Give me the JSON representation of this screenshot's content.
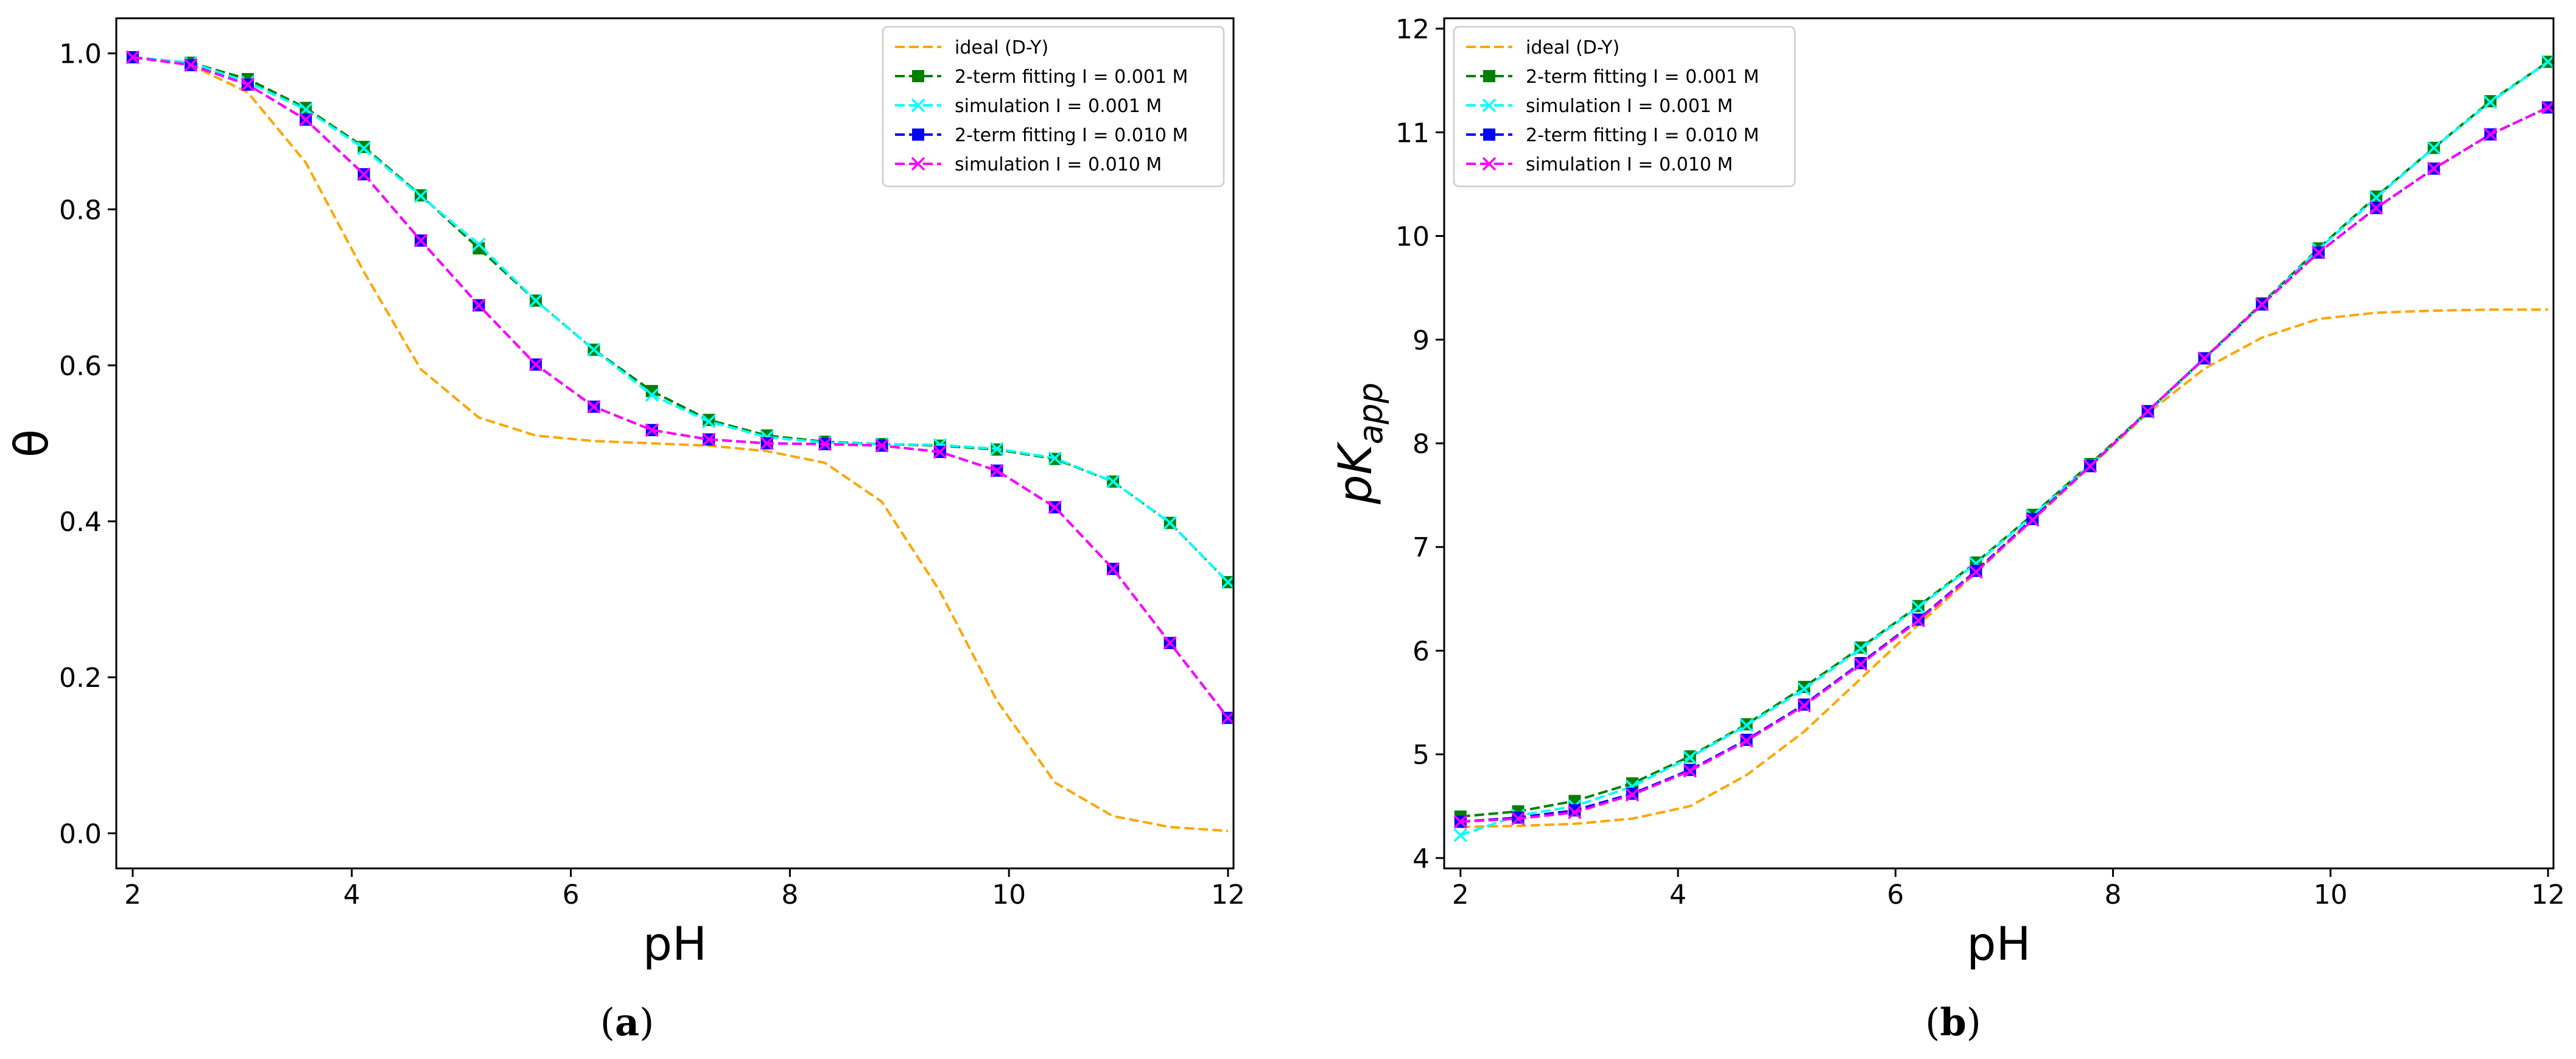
{
  "figure": {
    "panels": [
      {
        "open": "(",
        "letter": "a",
        "close": ")"
      },
      {
        "open": "(",
        "letter": "b",
        "close": ")"
      }
    ]
  },
  "chart_data": [
    {
      "type": "line",
      "panel": "a",
      "title": "",
      "xlabel": "pH",
      "ylabel": "θ",
      "ylabel_main": "θ",
      "ylabel_sub": "",
      "xlim": [
        1.85,
        12.05
      ],
      "ylim": [
        -0.045,
        1.045
      ],
      "xticks": [
        2,
        4,
        6,
        8,
        10,
        12
      ],
      "yticks": [
        0.0,
        0.2,
        0.4,
        0.6,
        0.8,
        1.0
      ],
      "ytick_labels": [
        "0.0",
        "0.2",
        "0.4",
        "0.6",
        "0.8",
        "1.0"
      ],
      "legend_position": "top-right",
      "x": [
        2.0,
        2.53,
        3.05,
        3.58,
        4.11,
        4.63,
        5.16,
        5.68,
        6.21,
        6.74,
        7.26,
        7.79,
        8.32,
        8.84,
        9.37,
        9.89,
        10.42,
        10.95,
        11.47,
        12.0
      ],
      "series": [
        {
          "name": "ideal (D-Y)",
          "color": "#ffa500",
          "marker": "none",
          "values": [
            0.995,
            0.985,
            0.95,
            0.86,
            0.72,
            0.595,
            0.533,
            0.51,
            0.503,
            0.5,
            0.497,
            0.49,
            0.475,
            0.425,
            0.31,
            0.17,
            0.065,
            0.022,
            0.008,
            0.003
          ]
        },
        {
          "name": "2-term fitting I = 0.001 M",
          "color": "#008000",
          "marker": "square",
          "values": [
            0.995,
            0.988,
            0.967,
            0.93,
            0.88,
            0.818,
            0.75,
            0.683,
            0.62,
            0.567,
            0.53,
            0.51,
            0.502,
            0.499,
            0.497,
            0.492,
            0.48,
            0.451,
            0.398,
            0.322
          ]
        },
        {
          "name": "simulation I = 0.001 M",
          "color": "#00ffff",
          "marker": "x",
          "values": [
            0.995,
            0.988,
            0.963,
            0.928,
            0.878,
            0.817,
            0.755,
            0.683,
            0.62,
            0.562,
            0.528,
            0.508,
            0.501,
            0.499,
            0.498,
            0.493,
            0.481,
            0.451,
            0.398,
            0.322
          ]
        },
        {
          "name": "2-term fitting I = 0.010 M",
          "color": "#0000ff",
          "marker": "square",
          "values": [
            0.995,
            0.985,
            0.96,
            0.915,
            0.845,
            0.76,
            0.677,
            0.601,
            0.547,
            0.517,
            0.505,
            0.5,
            0.499,
            0.497,
            0.489,
            0.465,
            0.418,
            0.339,
            0.244,
            0.148
          ]
        },
        {
          "name": "simulation I = 0.010 M",
          "color": "#ff00ff",
          "marker": "x",
          "values": [
            0.995,
            0.985,
            0.96,
            0.915,
            0.845,
            0.76,
            0.677,
            0.601,
            0.547,
            0.517,
            0.505,
            0.5,
            0.499,
            0.497,
            0.489,
            0.465,
            0.418,
            0.339,
            0.244,
            0.148
          ]
        }
      ]
    },
    {
      "type": "line",
      "panel": "b",
      "title": "",
      "xlabel": "pH",
      "ylabel": "pKapp",
      "ylabel_main": "pK",
      "ylabel_sub": "app",
      "xlim": [
        1.85,
        12.05
      ],
      "ylim": [
        3.9,
        12.1
      ],
      "xticks": [
        2,
        4,
        6,
        8,
        10,
        12
      ],
      "yticks": [
        4,
        5,
        6,
        7,
        8,
        9,
        10,
        11,
        12
      ],
      "ytick_labels": [
        "4",
        "5",
        "6",
        "7",
        "8",
        "9",
        "10",
        "11",
        "12"
      ],
      "legend_position": "top-left",
      "x": [
        2.0,
        2.53,
        3.05,
        3.58,
        4.11,
        4.63,
        5.16,
        5.68,
        6.21,
        6.74,
        7.26,
        7.79,
        8.32,
        8.84,
        9.37,
        9.89,
        10.42,
        10.95,
        11.47,
        12.0
      ],
      "series": [
        {
          "name": "ideal (D-Y)",
          "color": "#ffa500",
          "marker": "none",
          "values": [
            4.3,
            4.31,
            4.33,
            4.38,
            4.5,
            4.8,
            5.22,
            5.73,
            6.25,
            6.75,
            7.27,
            7.78,
            8.29,
            8.72,
            9.02,
            9.2,
            9.26,
            9.28,
            9.29,
            9.29
          ]
        },
        {
          "name": "2-term fitting I = 0.001 M",
          "color": "#008000",
          "marker": "square",
          "values": [
            4.4,
            4.45,
            4.55,
            4.72,
            4.98,
            5.29,
            5.65,
            6.03,
            6.43,
            6.85,
            7.31,
            7.8,
            8.31,
            8.82,
            9.35,
            9.88,
            10.38,
            10.85,
            11.3,
            11.68
          ]
        },
        {
          "name": "simulation I = 0.001 M",
          "color": "#00ffff",
          "marker": "x",
          "values": [
            4.22,
            4.41,
            4.5,
            4.69,
            4.97,
            5.28,
            5.63,
            6.02,
            6.42,
            6.84,
            7.3,
            7.79,
            8.3,
            8.81,
            9.34,
            9.87,
            10.37,
            10.85,
            11.29,
            11.68
          ]
        },
        {
          "name": "2-term fitting I = 0.010 M",
          "color": "#0000ff",
          "marker": "square",
          "values": [
            4.35,
            4.39,
            4.46,
            4.62,
            4.85,
            5.14,
            5.48,
            5.88,
            6.3,
            6.77,
            7.27,
            7.78,
            8.31,
            8.82,
            9.34,
            9.84,
            10.27,
            10.65,
            10.98,
            11.24
          ]
        },
        {
          "name": "simulation I = 0.010 M",
          "color": "#ff00ff",
          "marker": "x",
          "values": [
            4.35,
            4.38,
            4.44,
            4.61,
            4.84,
            5.13,
            5.47,
            5.87,
            6.29,
            6.76,
            7.26,
            7.78,
            8.31,
            8.82,
            9.34,
            9.84,
            10.27,
            10.65,
            10.98,
            11.24
          ]
        }
      ]
    }
  ]
}
